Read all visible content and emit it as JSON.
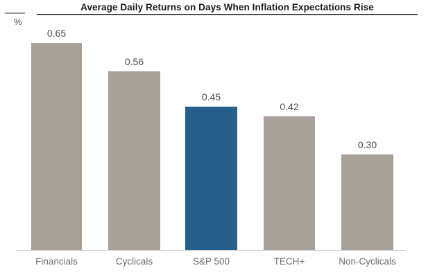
{
  "header": {
    "title": "Average Daily Returns on Days When Inflation Expectations Rise",
    "y_axis_unit": "%"
  },
  "colors": {
    "bar_default": "#a8a19a",
    "bar_highlight": "#275f8c",
    "value_label": "#4a4a4a",
    "category_label": "#6e6e6e",
    "axis_line": "#c9c9c9",
    "title_rule": "#4f4f4f"
  },
  "chart_data": {
    "type": "bar",
    "title": "Average Daily Returns on Days When Inflation Expectations Rise",
    "xlabel": "",
    "ylabel": "%",
    "categories": [
      "Financials",
      "Cyclicals",
      "S&P 500",
      "TECH+",
      "Non-Cyclicals"
    ],
    "values": [
      0.65,
      0.56,
      0.45,
      0.42,
      0.3
    ],
    "value_labels": [
      "0.65",
      "0.56",
      "0.45",
      "0.42",
      "0.30"
    ],
    "highlight_category": "S&P 500",
    "ylim": [
      0,
      0.7
    ],
    "grid": false,
    "legend": false,
    "bar_color_default": "#a8a19a",
    "bar_color_highlight": "#275f8c"
  }
}
